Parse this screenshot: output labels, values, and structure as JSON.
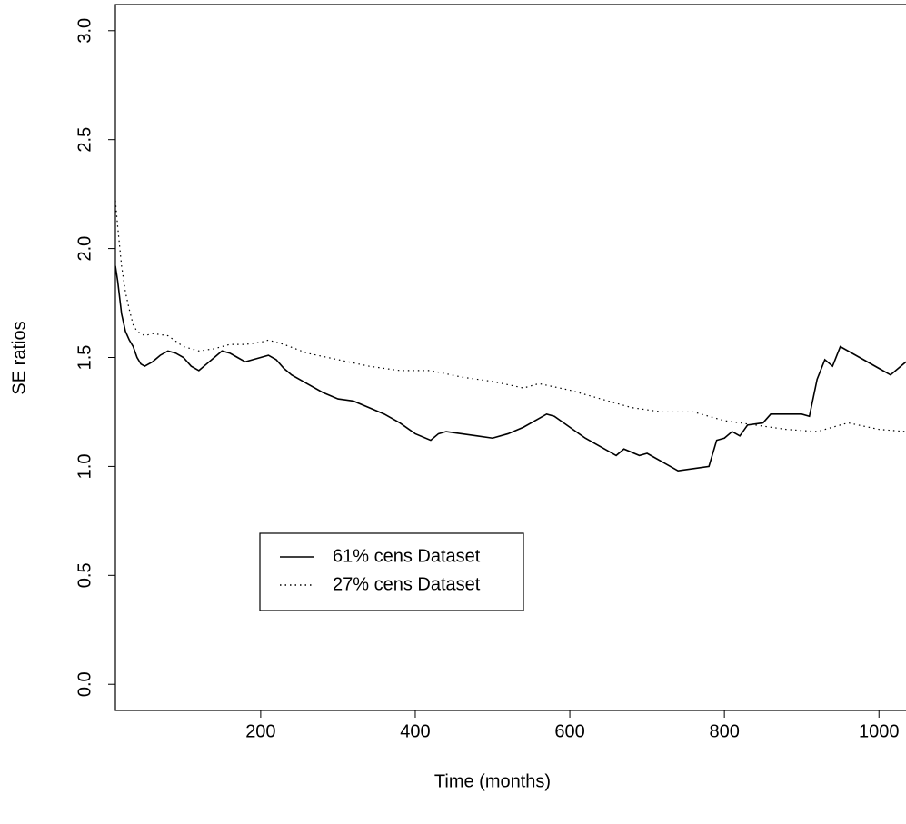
{
  "chart_data": {
    "type": "line",
    "xlabel": "Time (months)",
    "ylabel": "SE ratios",
    "xlim": [
      12,
      1035
    ],
    "ylim": [
      -0.12,
      3.12
    ],
    "xticks": [
      200,
      400,
      600,
      800,
      1000
    ],
    "yticks": [
      {
        "value": 0,
        "label": "0.0"
      },
      0.5,
      {
        "value": 1,
        "label": "1.0"
      },
      1.5,
      {
        "value": 2,
        "label": "2.0"
      },
      2.5,
      {
        "value": 3,
        "label": "3.0"
      }
    ],
    "legend_position": "lower-left",
    "series": [
      {
        "name": "61% cens Dataset",
        "color": "#000000",
        "linestyle": "solid",
        "x": [
          12,
          15,
          20,
          25,
          30,
          35,
          40,
          45,
          50,
          55,
          60,
          70,
          80,
          90,
          100,
          110,
          120,
          130,
          140,
          150,
          160,
          170,
          180,
          190,
          200,
          210,
          220,
          230,
          240,
          260,
          280,
          300,
          320,
          340,
          360,
          380,
          400,
          420,
          430,
          440,
          460,
          480,
          500,
          520,
          540,
          560,
          570,
          580,
          600,
          620,
          640,
          660,
          670,
          690,
          700,
          720,
          740,
          760,
          780,
          790,
          800,
          810,
          820,
          830,
          850,
          860,
          900,
          910,
          920,
          930,
          940,
          950,
          1000,
          1015,
          1035
        ],
        "values": [
          1.92,
          1.85,
          1.7,
          1.62,
          1.58,
          1.55,
          1.5,
          1.47,
          1.46,
          1.47,
          1.48,
          1.51,
          1.53,
          1.52,
          1.5,
          1.46,
          1.44,
          1.47,
          1.5,
          1.53,
          1.52,
          1.5,
          1.48,
          1.49,
          1.5,
          1.51,
          1.49,
          1.45,
          1.42,
          1.38,
          1.34,
          1.31,
          1.3,
          1.27,
          1.24,
          1.2,
          1.15,
          1.12,
          1.15,
          1.16,
          1.15,
          1.14,
          1.13,
          1.15,
          1.18,
          1.22,
          1.24,
          1.23,
          1.18,
          1.13,
          1.09,
          1.05,
          1.08,
          1.05,
          1.06,
          1.02,
          0.98,
          0.99,
          1.0,
          1.12,
          1.13,
          1.16,
          1.14,
          1.19,
          1.2,
          1.24,
          1.24,
          1.23,
          1.4,
          1.49,
          1.46,
          1.55,
          1.45,
          1.42,
          1.48
        ]
      },
      {
        "name": "27% cens Dataset",
        "color": "#000000",
        "linestyle": "dotted",
        "x": [
          12,
          15,
          20,
          25,
          30,
          35,
          40,
          50,
          60,
          80,
          100,
          120,
          140,
          160,
          180,
          200,
          210,
          230,
          260,
          300,
          340,
          380,
          420,
          460,
          500,
          540,
          560,
          600,
          640,
          680,
          720,
          760,
          800,
          840,
          880,
          920,
          960,
          1000,
          1035
        ],
        "values": [
          2.22,
          2.1,
          1.92,
          1.8,
          1.72,
          1.65,
          1.62,
          1.6,
          1.61,
          1.6,
          1.55,
          1.53,
          1.54,
          1.56,
          1.56,
          1.57,
          1.58,
          1.56,
          1.52,
          1.49,
          1.46,
          1.44,
          1.44,
          1.41,
          1.39,
          1.36,
          1.38,
          1.35,
          1.31,
          1.27,
          1.25,
          1.25,
          1.21,
          1.19,
          1.17,
          1.16,
          1.2,
          1.17,
          1.16
        ]
      }
    ]
  }
}
